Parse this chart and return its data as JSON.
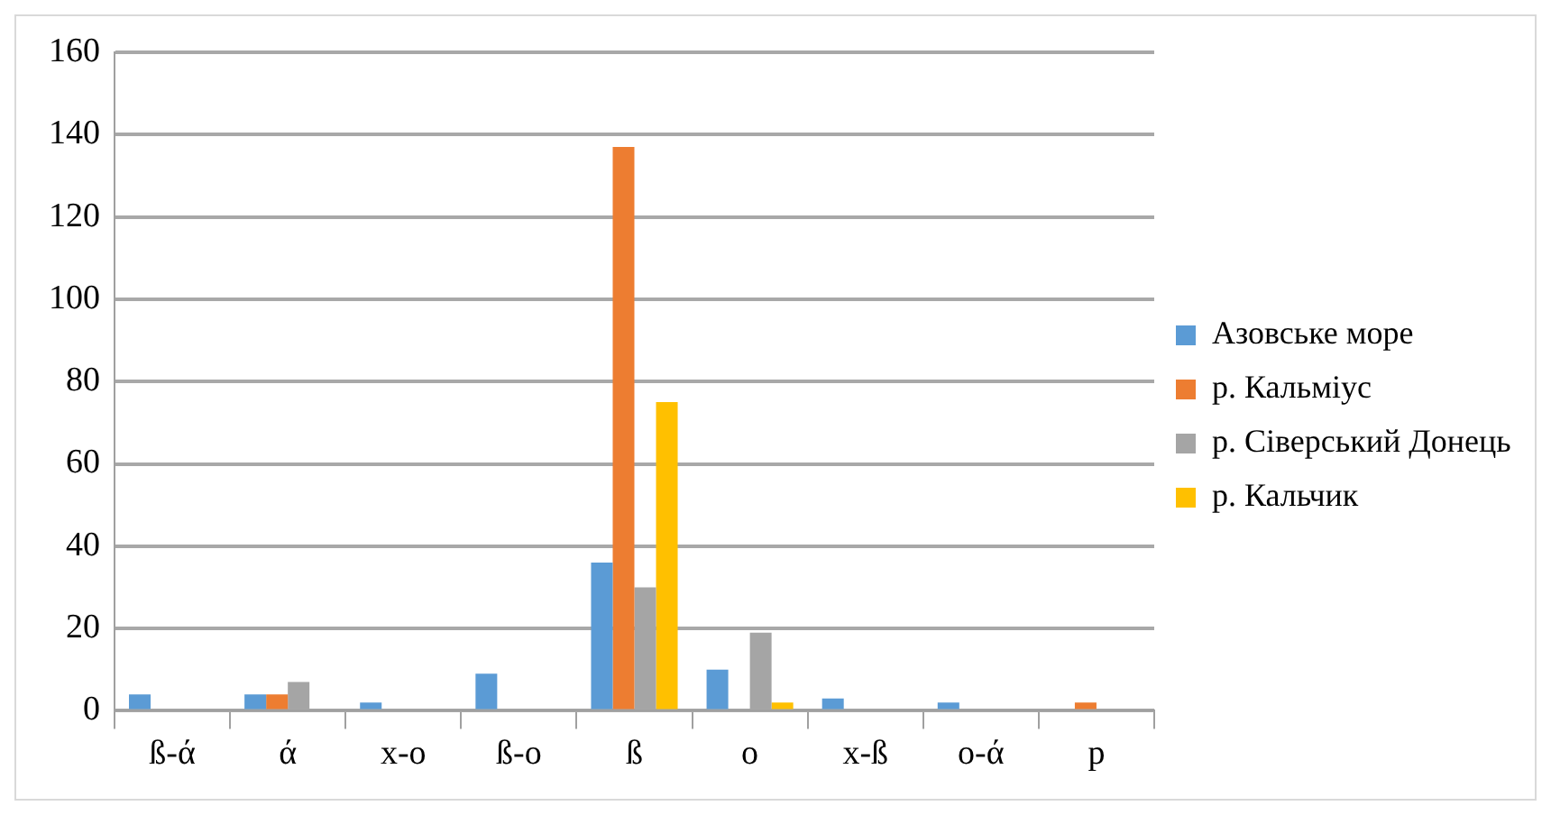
{
  "chart_data": {
    "type": "bar",
    "categories": [
      "ß-ά",
      "ά",
      "x-o",
      "ß-o",
      "ß",
      "o",
      "x-ß",
      "o-ά",
      "p"
    ],
    "series": [
      {
        "name": "Азовське море",
        "color": "#5b9bd5",
        "values": [
          4,
          4,
          2,
          9,
          36,
          10,
          3,
          2,
          0
        ]
      },
      {
        "name": "р. Кальміус",
        "color": "#ed7d31",
        "values": [
          0,
          4,
          0,
          0,
          137,
          0,
          0,
          0,
          2
        ]
      },
      {
        "name": "р. Сіверський Донець",
        "color": "#a5a5a5",
        "values": [
          0,
          7,
          0,
          0,
          30,
          19,
          0,
          0,
          0
        ]
      },
      {
        "name": "р. Кальчик",
        "color": "#ffc000",
        "values": [
          0,
          0,
          0,
          0,
          75,
          2,
          0,
          0,
          0
        ]
      }
    ],
    "ylim": [
      0,
      160
    ],
    "yticks": [
      0,
      20,
      40,
      60,
      80,
      100,
      120,
      140,
      160
    ],
    "grid": "y",
    "legend": "right"
  }
}
